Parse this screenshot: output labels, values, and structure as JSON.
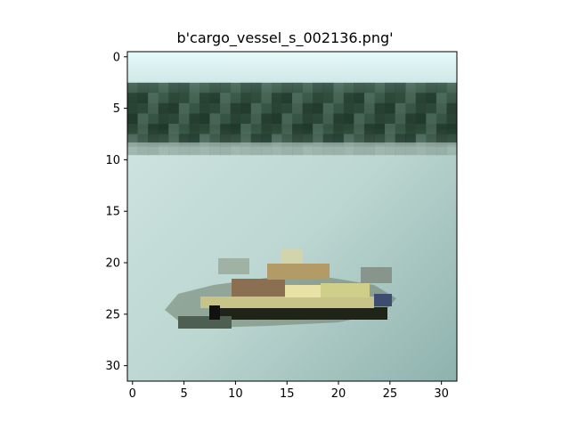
{
  "figure": {
    "title": "b'cargo_vessel_s_002136.png'"
  },
  "chart_data": {
    "type": "heatmap",
    "title": "b'cargo_vessel_s_002136.png'",
    "image_size": [
      32,
      32
    ],
    "x_ticks": [
      0,
      5,
      10,
      15,
      20,
      25,
      30
    ],
    "y_ticks": [
      0,
      5,
      10,
      15,
      20,
      25,
      30
    ],
    "x_range": [
      -0.5,
      31.5
    ],
    "y_range": [
      31.5,
      -0.5
    ],
    "grid": false,
    "colors": {
      "sky": "#dff3f3",
      "shoreline_dark": "#1f3a2d",
      "shoreline_mid": "#4d6a5c",
      "water_light": "#c4dcd8",
      "water_dark": "#8db0ab",
      "hull_dark": "#1e2418",
      "deck_yellow": "#d8d490",
      "cargo_tan": "#a58a5a"
    }
  }
}
